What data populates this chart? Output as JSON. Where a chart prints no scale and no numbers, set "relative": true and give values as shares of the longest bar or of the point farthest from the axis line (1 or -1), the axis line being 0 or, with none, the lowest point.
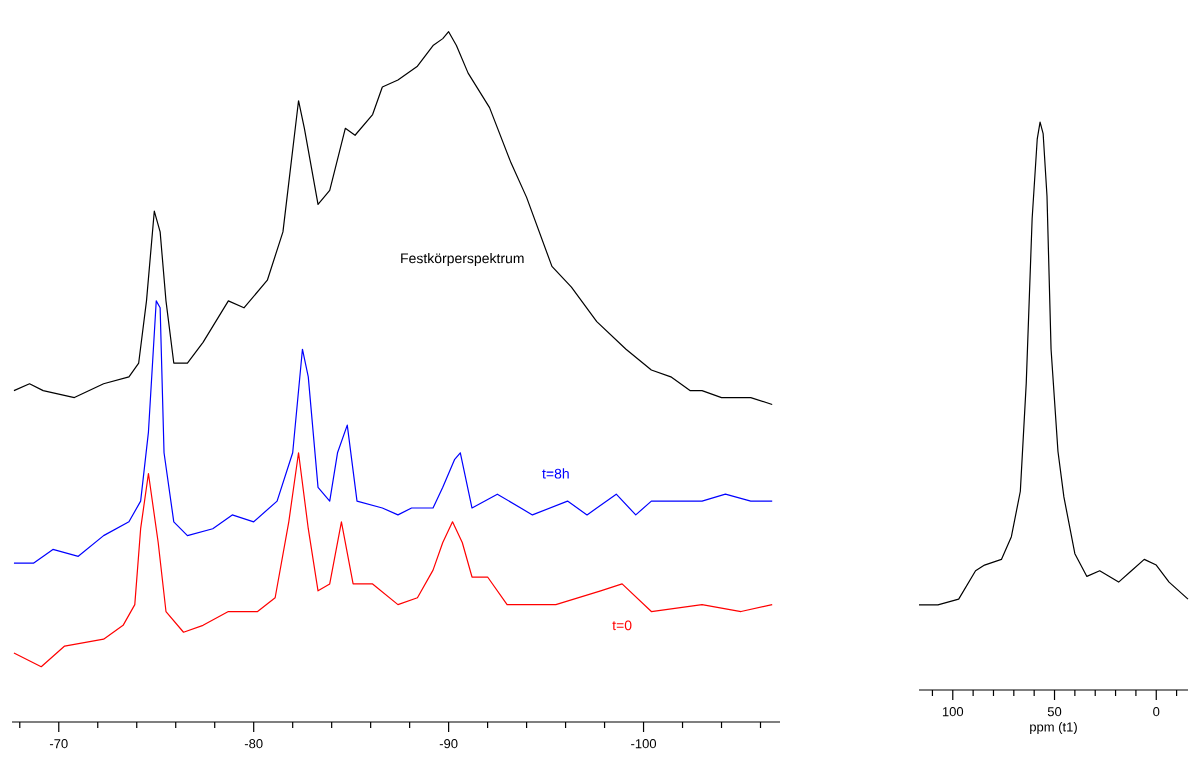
{
  "chart_data": [
    {
      "type": "line",
      "relative": true,
      "xlim": [
        -67.6,
        -107
      ],
      "xticks": [
        {
          "value": -68,
          "label": null
        },
        -70,
        {
          "value": -72,
          "label": null
        },
        {
          "value": -74,
          "label": null
        },
        {
          "value": -76,
          "label": null
        },
        {
          "value": -78,
          "label": null
        },
        -80,
        {
          "value": -82,
          "label": null
        },
        {
          "value": -84,
          "label": null
        },
        {
          "value": -86,
          "label": null
        },
        {
          "value": -88,
          "label": null
        },
        -90,
        {
          "value": -92,
          "label": null
        },
        {
          "value": -94,
          "label": null
        },
        {
          "value": -96,
          "label": null
        },
        {
          "value": -98,
          "label": null
        },
        -100,
        {
          "value": -102,
          "label": null
        },
        {
          "value": -104,
          "label": null
        },
        {
          "value": -106,
          "label": null
        }
      ],
      "marker": "none",
      "line_style": "solid",
      "series": [
        {
          "name": "Festkörperspektrum",
          "color": "#000000",
          "x": [
            -67.7,
            -68.5,
            -69.2,
            -70.8,
            -72.3,
            -73.6,
            -74.1,
            -74.5,
            -74.9,
            -75.2,
            -75.5,
            -75.9,
            -76.6,
            -77.4,
            -78.7,
            -79.5,
            -80.7,
            -81.5,
            -82.3,
            -82.6,
            -83.3,
            -83.9,
            -84.7,
            -85.2,
            -86.1,
            -86.6,
            -87.4,
            -88.4,
            -89.2,
            -89.7,
            -90.0,
            -90.4,
            -91.0,
            -92.1,
            -93.2,
            -94.0,
            -95.3,
            -96.3,
            -97.6,
            -99.1,
            -100.4,
            -101.4,
            -102.4,
            -103.0,
            -104.0,
            -105.5,
            -106.6
          ],
          "values": [
            0.48,
            0.49,
            0.48,
            0.47,
            0.49,
            0.5,
            0.52,
            0.61,
            0.74,
            0.71,
            0.61,
            0.52,
            0.52,
            0.55,
            0.61,
            0.6,
            0.64,
            0.71,
            0.9,
            0.86,
            0.75,
            0.77,
            0.86,
            0.85,
            0.88,
            0.92,
            0.93,
            0.95,
            0.98,
            0.99,
            1.0,
            0.98,
            0.94,
            0.89,
            0.81,
            0.76,
            0.66,
            0.63,
            0.58,
            0.54,
            0.51,
            0.5,
            0.48,
            0.48,
            0.47,
            0.47,
            0.46
          ]
        },
        {
          "name": "t=8h",
          "color": "#0000ff",
          "x": [
            -67.7,
            -68.7,
            -69.7,
            -71.0,
            -72.3,
            -73.6,
            -74.2,
            -74.6,
            -75.0,
            -75.2,
            -75.4,
            -75.9,
            -76.6,
            -77.9,
            -78.9,
            -80.0,
            -81.2,
            -82.0,
            -82.5,
            -82.8,
            -83.3,
            -83.9,
            -84.3,
            -84.8,
            -85.3,
            -86.6,
            -87.4,
            -88.1,
            -89.2,
            -89.7,
            -90.3,
            -90.6,
            -91.2,
            -92.5,
            -94.3,
            -96.1,
            -97.1,
            -98.6,
            -99.6,
            -100.4,
            -103.0,
            -104.2,
            -105.5,
            -106.6
          ],
          "values": [
            0.23,
            0.23,
            0.25,
            0.24,
            0.27,
            0.29,
            0.32,
            0.42,
            0.61,
            0.6,
            0.39,
            0.29,
            0.27,
            0.28,
            0.3,
            0.29,
            0.32,
            0.39,
            0.54,
            0.5,
            0.34,
            0.32,
            0.39,
            0.43,
            0.32,
            0.31,
            0.3,
            0.31,
            0.31,
            0.34,
            0.38,
            0.39,
            0.31,
            0.33,
            0.3,
            0.32,
            0.3,
            0.33,
            0.3,
            0.32,
            0.32,
            0.33,
            0.32,
            0.32
          ]
        },
        {
          "name": "t=0",
          "color": "#ff0000",
          "x": [
            -67.7,
            -69.1,
            -70.3,
            -72.3,
            -73.3,
            -73.9,
            -74.2,
            -74.6,
            -75.1,
            -75.5,
            -76.4,
            -77.4,
            -78.7,
            -80.2,
            -81.1,
            -81.8,
            -82.3,
            -82.8,
            -83.3,
            -83.9,
            -84.5,
            -85.1,
            -86.1,
            -87.4,
            -88.4,
            -89.2,
            -89.7,
            -90.2,
            -90.7,
            -91.2,
            -92.0,
            -93.0,
            -95.5,
            -97.8,
            -98.9,
            -100.4,
            -103.0,
            -105.0,
            -106.6
          ],
          "values": [
            0.1,
            0.08,
            0.11,
            0.12,
            0.14,
            0.17,
            0.28,
            0.36,
            0.26,
            0.16,
            0.13,
            0.14,
            0.16,
            0.16,
            0.18,
            0.29,
            0.39,
            0.28,
            0.19,
            0.2,
            0.29,
            0.2,
            0.2,
            0.17,
            0.18,
            0.22,
            0.26,
            0.29,
            0.26,
            0.21,
            0.21,
            0.17,
            0.17,
            0.19,
            0.2,
            0.16,
            0.17,
            0.16,
            0.17
          ]
        }
      ]
    },
    {
      "type": "line",
      "relative": true,
      "xlabel": "ppm (t1)",
      "xlim": [
        116.6,
        -15.6
      ],
      "xticks": [
        {
          "value": 110,
          "label": null
        },
        100,
        {
          "value": 90,
          "label": null
        },
        {
          "value": 80,
          "label": null
        },
        {
          "value": 70,
          "label": null
        },
        {
          "value": 60,
          "label": null
        },
        50,
        {
          "value": 40,
          "label": null
        },
        {
          "value": 30,
          "label": null
        },
        {
          "value": 20,
          "label": null
        },
        {
          "value": 10,
          "label": null
        },
        0,
        {
          "value": -10,
          "label": null
        }
      ],
      "marker": "none",
      "line_style": "solid",
      "series": [
        {
          "color": "#000000",
          "x": [
            116.6,
            107.3,
            97.1,
            88.8,
            84.4,
            76.1,
            71.2,
            66.8,
            63.9,
            61.0,
            58.5,
            57.1,
            55.6,
            53.7,
            51.7,
            48.3,
            45.4,
            40.0,
            34.1,
            27.8,
            18.5,
            12.2,
            5.9,
            0.0,
            -6.3,
            -15.6
          ],
          "values": [
            0.15,
            0.15,
            0.16,
            0.21,
            0.22,
            0.23,
            0.27,
            0.35,
            0.54,
            0.83,
            0.97,
            1.0,
            0.98,
            0.87,
            0.6,
            0.42,
            0.34,
            0.24,
            0.2,
            0.21,
            0.19,
            0.21,
            0.23,
            0.22,
            0.19,
            0.16
          ]
        }
      ]
    }
  ]
}
